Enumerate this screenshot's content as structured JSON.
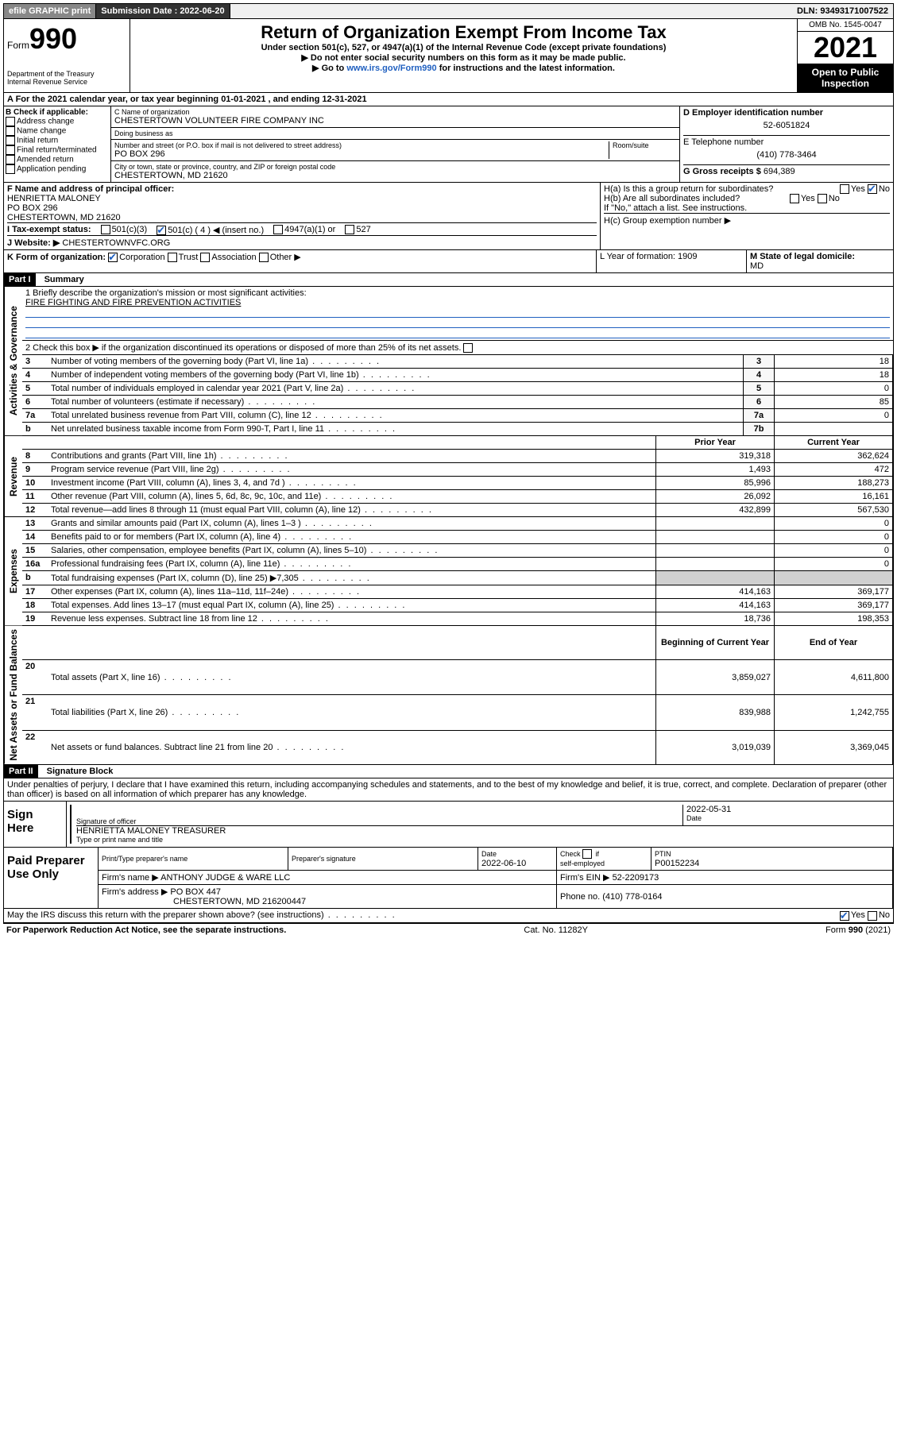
{
  "topbar": {
    "efile": "efile GRAPHIC print",
    "submission_label": "Submission Date : 2022-06-20",
    "dln_label": "DLN: 93493171007522"
  },
  "header": {
    "form_label": "Form",
    "form_number": "990",
    "dept": "Department of the Treasury",
    "irs": "Internal Revenue Service",
    "title": "Return of Organization Exempt From Income Tax",
    "sub1": "Under section 501(c), 527, or 4947(a)(1) of the Internal Revenue Code (except private foundations)",
    "sub2": "▶ Do not enter social security numbers on this form as it may be made public.",
    "sub3_pre": "▶ Go to ",
    "sub3_link": "www.irs.gov/Form990",
    "sub3_post": " for instructions and the latest information.",
    "omb": "OMB No. 1545-0047",
    "year": "2021",
    "open1": "Open to Public",
    "open2": "Inspection"
  },
  "row_a": "A For the 2021 calendar year, or tax year beginning 01-01-2021    , and ending 12-31-2021",
  "box_b": {
    "header": "B Check if applicable:",
    "items": [
      "Address change",
      "Name change",
      "Initial return",
      "Final return/terminated",
      "Amended return",
      "Application pending"
    ]
  },
  "box_c": {
    "label": "C Name of organization",
    "name": "CHESTERTOWN VOLUNTEER FIRE COMPANY INC",
    "dba_label": "Doing business as",
    "addr_label": "Number and street (or P.O. box if mail is not delivered to street address)",
    "room": "Room/suite",
    "addr": "PO BOX 296",
    "city_label": "City or town, state or province, country, and ZIP or foreign postal code",
    "city": "CHESTERTOWN, MD  21620"
  },
  "box_d": {
    "label": "D Employer identification number",
    "value": "52-6051824"
  },
  "box_e": {
    "label": "E Telephone number",
    "value": "(410) 778-3464"
  },
  "box_g": {
    "label": "G Gross receipts $",
    "value": "694,389"
  },
  "box_f": {
    "label": "F Name and address of principal officer:",
    "name": "HENRIETTA MALONEY",
    "addr1": "PO BOX 296",
    "addr2": "CHESTERTOWN, MD  21620"
  },
  "box_h": {
    "a": "H(a)  Is this a group return for subordinates?",
    "b": "H(b)  Are all subordinates included?",
    "note": "If \"No,\" attach a list. See instructions.",
    "c": "H(c)  Group exemption number ▶",
    "yes": "Yes",
    "no": "No"
  },
  "row_i": {
    "label": "I     Tax-exempt status:",
    "o1": "501(c)(3)",
    "o2": "501(c) ( 4 ) ◀ (insert no.)",
    "o3": "4947(a)(1) or",
    "o4": "527"
  },
  "row_j": {
    "label": "J    Website: ▶",
    "value": "CHESTERTOWNVFC.ORG"
  },
  "row_k": {
    "label": "K Form of organization:",
    "o1": "Corporation",
    "o2": "Trust",
    "o3": "Association",
    "o4": "Other ▶"
  },
  "row_l": {
    "label": "L Year of formation: 1909"
  },
  "row_m": {
    "label": "M State of legal domicile:",
    "value": "MD"
  },
  "part1": {
    "title": "Part I",
    "sub": "Summary",
    "line1_label": "1   Briefly describe the organization's mission or most significant activities:",
    "line1_value": "FIRE FIGHTING AND FIRE PREVENTION ACTIVITIES",
    "line2": "2   Check this box ▶        if the organization discontinued its operations or disposed of more than 25% of its net assets.",
    "side_gov": "Activities & Governance",
    "side_rev": "Revenue",
    "side_exp": "Expenses",
    "side_net": "Net Assets or Fund Balances",
    "col_prior": "Prior Year",
    "col_current": "Current Year",
    "col_begin": "Beginning of Current Year",
    "col_end": "End of Year",
    "gov_lines": [
      {
        "n": "3",
        "d": "Number of voting members of the governing body (Part VI, line 1a)",
        "lbl": "3",
        "v": "18"
      },
      {
        "n": "4",
        "d": "Number of independent voting members of the governing body (Part VI, line 1b)",
        "lbl": "4",
        "v": "18"
      },
      {
        "n": "5",
        "d": "Total number of individuals employed in calendar year 2021 (Part V, line 2a)",
        "lbl": "5",
        "v": "0"
      },
      {
        "n": "6",
        "d": "Total number of volunteers (estimate if necessary)",
        "lbl": "6",
        "v": "85"
      },
      {
        "n": "7a",
        "d": "Total unrelated business revenue from Part VIII, column (C), line 12",
        "lbl": "7a",
        "v": "0"
      },
      {
        "n": "b",
        "d": "Net unrelated business taxable income from Form 990-T, Part I, line 11",
        "lbl": "7b",
        "v": ""
      }
    ],
    "rev_lines": [
      {
        "n": "8",
        "d": "Contributions and grants (Part VIII, line 1h)",
        "p": "319,318",
        "c": "362,624"
      },
      {
        "n": "9",
        "d": "Program service revenue (Part VIII, line 2g)",
        "p": "1,493",
        "c": "472"
      },
      {
        "n": "10",
        "d": "Investment income (Part VIII, column (A), lines 3, 4, and 7d )",
        "p": "85,996",
        "c": "188,273"
      },
      {
        "n": "11",
        "d": "Other revenue (Part VIII, column (A), lines 5, 6d, 8c, 9c, 10c, and 11e)",
        "p": "26,092",
        "c": "16,161"
      },
      {
        "n": "12",
        "d": "Total revenue—add lines 8 through 11 (must equal Part VIII, column (A), line 12)",
        "p": "432,899",
        "c": "567,530"
      }
    ],
    "exp_lines": [
      {
        "n": "13",
        "d": "Grants and similar amounts paid (Part IX, column (A), lines 1–3 )",
        "p": "",
        "c": "0"
      },
      {
        "n": "14",
        "d": "Benefits paid to or for members (Part IX, column (A), line 4)",
        "p": "",
        "c": "0"
      },
      {
        "n": "15",
        "d": "Salaries, other compensation, employee benefits (Part IX, column (A), lines 5–10)",
        "p": "",
        "c": "0"
      },
      {
        "n": "16a",
        "d": "Professional fundraising fees (Part IX, column (A), line 11e)",
        "p": "",
        "c": "0"
      },
      {
        "n": "b",
        "d": "Total fundraising expenses (Part IX, column (D), line 25) ▶7,305",
        "p": "SHADE",
        "c": "SHADE"
      },
      {
        "n": "17",
        "d": "Other expenses (Part IX, column (A), lines 11a–11d, 11f–24e)",
        "p": "414,163",
        "c": "369,177"
      },
      {
        "n": "18",
        "d": "Total expenses. Add lines 13–17 (must equal Part IX, column (A), line 25)",
        "p": "414,163",
        "c": "369,177"
      },
      {
        "n": "19",
        "d": "Revenue less expenses. Subtract line 18 from line 12",
        "p": "18,736",
        "c": "198,353"
      }
    ],
    "net_lines": [
      {
        "n": "20",
        "d": "Total assets (Part X, line 16)",
        "p": "3,859,027",
        "c": "4,611,800"
      },
      {
        "n": "21",
        "d": "Total liabilities (Part X, line 26)",
        "p": "839,988",
        "c": "1,242,755"
      },
      {
        "n": "22",
        "d": "Net assets or fund balances. Subtract line 21 from line 20",
        "p": "3,019,039",
        "c": "3,369,045"
      }
    ]
  },
  "part2": {
    "title": "Part II",
    "sub": "Signature Block",
    "decl": "Under penalties of perjury, I declare that I have examined this return, including accompanying schedules and statements, and to the best of my knowledge and belief, it is true, correct, and complete. Declaration of preparer (other than officer) is based on all information of which preparer has any knowledge."
  },
  "sign": {
    "label": "Sign Here",
    "sig_officer": "Signature of officer",
    "date_label": "Date",
    "date": "2022-05-31",
    "name": "HENRIETTA MALONEY TREASURER",
    "name_label": "Type or print name and title"
  },
  "preparer": {
    "label": "Paid Preparer Use Only",
    "c1": "Print/Type preparer's name",
    "c2": "Preparer's signature",
    "c3_label": "Date",
    "c3": "2022-06-10",
    "c4": "Check         if self-employed",
    "c5_label": "PTIN",
    "c5": "P00152234",
    "firm_name_label": "Firm's name     ▶",
    "firm_name": "ANTHONY JUDGE & WARE LLC",
    "firm_ein_label": "Firm's EIN ▶",
    "firm_ein": "52-2209173",
    "firm_addr_label": "Firm's address ▶",
    "firm_addr1": "PO BOX 447",
    "firm_addr2": "CHESTERTOWN, MD  216200447",
    "phone_label": "Phone no.",
    "phone": "(410) 778-0164"
  },
  "discuss": {
    "q": "May the IRS discuss this return with the preparer shown above? (see instructions)",
    "yes": "Yes",
    "no": "No"
  },
  "footer": {
    "left": "For Paperwork Reduction Act Notice, see the separate instructions.",
    "mid": "Cat. No. 11282Y",
    "right_pre": "Form ",
    "right_b": "990",
    "right_post": " (2021)"
  }
}
